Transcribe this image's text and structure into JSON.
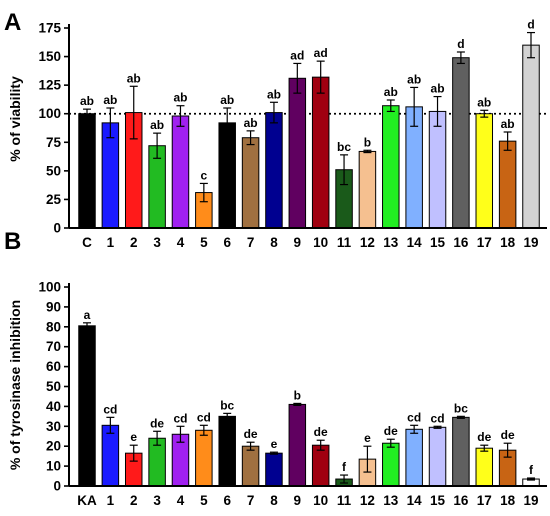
{
  "chart_data": [
    {
      "panel": "A",
      "type": "bar",
      "ylabel": "% of viability",
      "ylim": [
        0,
        175
      ],
      "yticks": [
        0,
        25,
        50,
        75,
        100,
        125,
        150,
        175
      ],
      "reference_line": 100,
      "categories": [
        "C",
        "1",
        "2",
        "3",
        "4",
        "5",
        "6",
        "7",
        "8",
        "9",
        "10",
        "11",
        "12",
        "13",
        "14",
        "15",
        "16",
        "17",
        "18",
        "19"
      ],
      "values": [
        100,
        92,
        101,
        72,
        98,
        31,
        92,
        79,
        101,
        131,
        132,
        51,
        67,
        107,
        106,
        102,
        149,
        100,
        76,
        160
      ],
      "errors": [
        4,
        13,
        23,
        11,
        9,
        8,
        13,
        6,
        9,
        13,
        14,
        13,
        1,
        5,
        17,
        13,
        5,
        3,
        8,
        11
      ],
      "letters": [
        "ab",
        "ab",
        "ab",
        "ab",
        "ab",
        "c",
        "ab",
        "ab",
        "ab",
        "ad",
        "ad",
        "bc",
        "b",
        "ab",
        "ab",
        "ab",
        "d",
        "ab",
        "ab",
        "d"
      ],
      "colors": [
        "#000000",
        "#1a1aff",
        "#ff1a1a",
        "#22bb22",
        "#a020f0",
        "#ff8c1a",
        "#000000",
        "#a07040",
        "#000090",
        "#600060",
        "#a00010",
        "#1a5a1a",
        "#f5c090",
        "#22ee22",
        "#80b0ff",
        "#c0c0ff",
        "#606060",
        "#ffff1a",
        "#c86414",
        "#d3d3d3"
      ]
    },
    {
      "panel": "B",
      "type": "bar",
      "ylabel": "% of tyrosinase inhibition",
      "ylim": [
        0,
        100
      ],
      "yticks": [
        0,
        10,
        20,
        30,
        40,
        50,
        60,
        70,
        80,
        90,
        100
      ],
      "categories": [
        "KA",
        "1",
        "2",
        "3",
        "4",
        "5",
        "6",
        "7",
        "8",
        "9",
        "10",
        "11",
        "12",
        "13",
        "14",
        "15",
        "16",
        "17",
        "18",
        "19"
      ],
      "values": [
        80.5,
        30.5,
        16.5,
        24,
        26,
        28,
        35,
        20,
        16.5,
        41,
        20.5,
        3.5,
        13.5,
        21.5,
        28.5,
        29.5,
        34.5,
        19,
        18,
        3.5
      ],
      "errors": [
        1.5,
        4,
        4,
        3.5,
        4,
        2.5,
        1.5,
        2,
        0.5,
        0.5,
        2.5,
        2,
        6.5,
        2,
        2,
        0.5,
        0.5,
        1.5,
        3.5,
        0.5
      ],
      "letters": [
        "a",
        "cd",
        "e",
        "de",
        "cd",
        "cd",
        "bc",
        "de",
        "e",
        "b",
        "de",
        "f",
        "e",
        "de",
        "cd",
        "cd",
        "bc",
        "de",
        "de",
        "f"
      ],
      "colors": [
        "#000000",
        "#1a1aff",
        "#ff1a1a",
        "#22bb22",
        "#a020f0",
        "#ff8c1a",
        "#000000",
        "#a07040",
        "#000090",
        "#600060",
        "#a00010",
        "#1a5a1a",
        "#f5c090",
        "#22ee22",
        "#80b0ff",
        "#c0c0ff",
        "#606060",
        "#ffff1a",
        "#c86414",
        "#ffffff"
      ]
    }
  ]
}
